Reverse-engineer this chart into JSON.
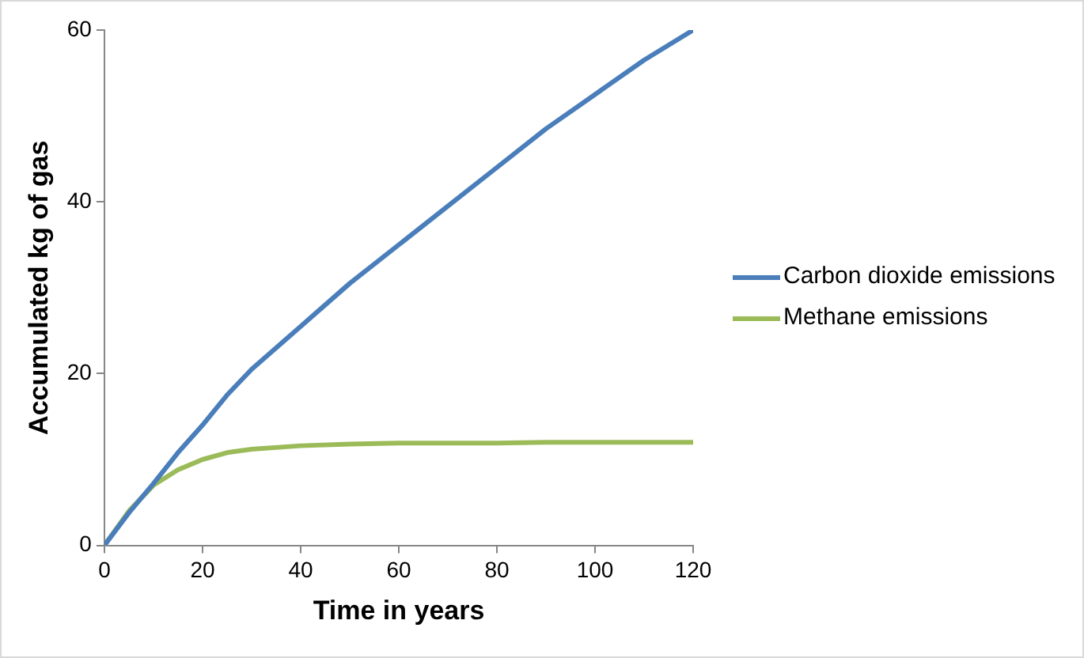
{
  "chart_data": {
    "type": "line",
    "xlabel": "Time in years",
    "ylabel": "Accumulated kg of gas",
    "x": [
      0,
      5,
      10,
      15,
      20,
      25,
      30,
      40,
      50,
      60,
      70,
      80,
      90,
      100,
      110,
      120
    ],
    "series": [
      {
        "name": "Carbon dioxide emissions",
        "color": "#4a7ebb",
        "values": [
          0,
          3.8,
          7.2,
          10.8,
          14,
          17.5,
          20.5,
          25.5,
          30.5,
          35,
          39.5,
          44,
          48.5,
          52.5,
          56.5,
          60
        ]
      },
      {
        "name": "Methane emissions",
        "color": "#9bbb59",
        "values": [
          0,
          4,
          7,
          8.8,
          10,
          10.8,
          11.2,
          11.6,
          11.8,
          11.9,
          11.9,
          11.9,
          12,
          12,
          12,
          12
        ]
      }
    ],
    "xlim": [
      0,
      120
    ],
    "xticks": [
      0,
      20,
      40,
      60,
      80,
      100,
      120
    ],
    "ylim": [
      0,
      60
    ],
    "yticks": [
      0,
      20,
      40,
      60
    ],
    "grid": false,
    "legend": "right",
    "marker": "none",
    "line_style": "solid"
  }
}
